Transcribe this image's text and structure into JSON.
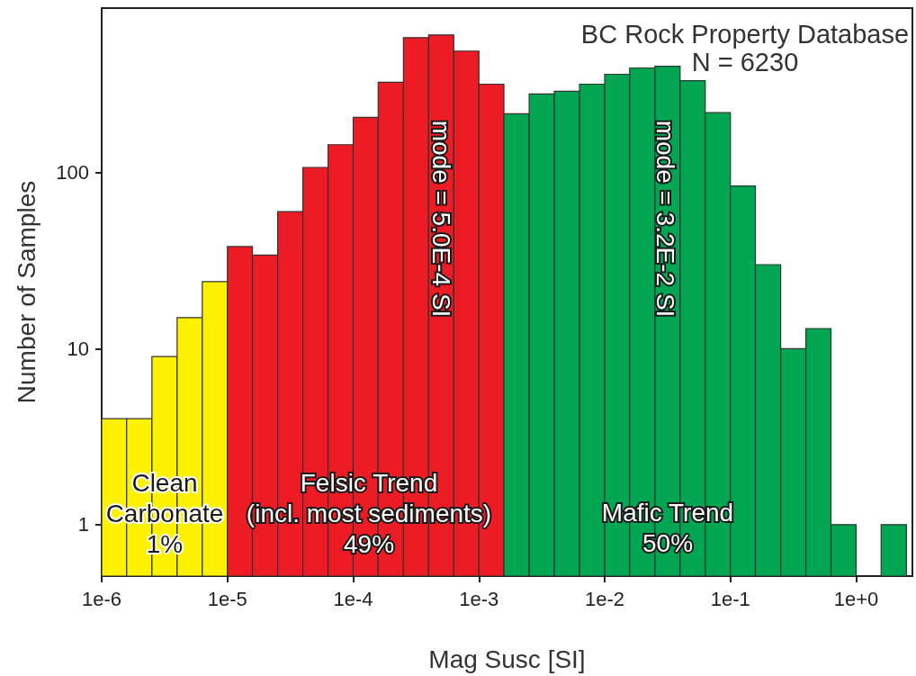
{
  "chart_data": {
    "type": "histogram",
    "title": "BC Rock Property Database",
    "subtitle": "N = 6230",
    "xlabel": "Mag Susc [SI]",
    "ylabel": "Number of Samples",
    "bins": [
      1e-06,
      1.58e-06,
      2.51e-06,
      3.98e-06,
      6.31e-06,
      1e-05,
      1.58e-05,
      2.51e-05,
      3.98e-05,
      6.31e-05,
      0.0001,
      0.000158,
      0.000251,
      0.000398,
      0.000631,
      0.001,
      0.00158,
      0.00251,
      0.00398,
      0.00631,
      0.01,
      0.0158,
      0.0251,
      0.0398,
      0.0631,
      0.1,
      0.158,
      0.251,
      0.398,
      0.631,
      1,
      1.58,
      2.51
    ],
    "values": [
      4,
      4,
      9,
      15,
      24,
      38,
      34,
      60,
      107,
      144,
      206,
      326,
      584,
      605,
      490,
      318,
      216,
      280,
      290,
      318,
      362,
      393,
      402,
      333,
      219,
      84,
      30,
      10,
      13,
      1,
      null,
      1
    ],
    "colors": [
      "#fff200",
      "#fff200",
      "#fff200",
      "#fff200",
      "#fff200",
      "#ed1c24",
      "#ed1c24",
      "#ed1c24",
      "#ed1c24",
      "#ed1c24",
      "#ed1c24",
      "#ed1c24",
      "#ed1c24",
      "#ed1c24",
      "#ed1c24",
      "#ed1c24",
      "#00a651",
      "#00a651",
      "#00a651",
      "#00a651",
      "#00a651",
      "#00a651",
      "#00a651",
      "#00a651",
      "#00a651",
      "#00a651",
      "#00a651",
      "#00a651",
      "#00a651",
      "#00a651",
      null,
      "#00a651"
    ],
    "log": "xy",
    "xlim": [
      1e-06,
      2.8
    ],
    "ylim": [
      0.51,
      860
    ],
    "xticks": [
      {
        "value": 1e-06,
        "label": "1e-6"
      },
      {
        "value": 1e-05,
        "label": "1e-5"
      },
      {
        "value": 0.0001,
        "label": "1e-4"
      },
      {
        "value": 0.001,
        "label": "1e-3"
      },
      {
        "value": 0.01,
        "label": "1e-2"
      },
      {
        "value": 0.1,
        "label": "1e-1"
      },
      {
        "value": 1,
        "label": "1e+0"
      }
    ],
    "yticks": [
      1,
      10,
      100
    ],
    "annotations": [
      "mode = 5.0E-4 SI",
      "mode = 3.2E-2 SI",
      "Clean\nCarbonate\n1%",
      "Felsic Trend\n(incl. most sediments)\n49%",
      "Mafic Trend\n50%"
    ]
  }
}
